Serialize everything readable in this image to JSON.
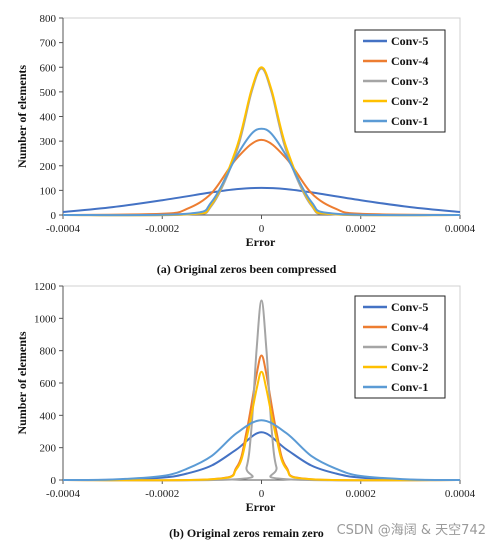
{
  "watermark": "CSDN @海阔 & 天空742",
  "chart_data": [
    {
      "type": "line",
      "caption": "(a) Original zeros been compressed",
      "xlabel": "Error",
      "ylabel": "Number of elements",
      "xlim": [
        -0.0004,
        0.0004
      ],
      "ylim": [
        0,
        800
      ],
      "xticks": [
        -0.0004,
        -0.0002,
        0,
        0.0002,
        0.0004
      ],
      "xtick_labels": [
        "-0.0004",
        "-0.0002",
        "0",
        "0.0002",
        "0.0004"
      ],
      "yticks": [
        0,
        100,
        200,
        300,
        400,
        500,
        600,
        700,
        800
      ],
      "ytick_labels": [
        "0",
        "100",
        "200",
        "300",
        "400",
        "500",
        "600",
        "700",
        "800"
      ],
      "grid": false,
      "legend_position": "top-right",
      "series": [
        {
          "name": "Conv-5",
          "color": "#4472c4",
          "x": [
            -0.0004,
            -0.0003,
            -0.0002,
            -0.0001,
            -5e-05,
            0,
            5e-05,
            0.0001,
            0.0002,
            0.0003,
            0.0004
          ],
          "y": [
            12,
            32,
            60,
            92,
            105,
            110,
            105,
            92,
            60,
            32,
            12
          ]
        },
        {
          "name": "Conv-4",
          "color": "#ed7d31",
          "x": [
            -0.0004,
            -0.0002,
            -0.00015,
            -0.0001,
            -5e-05,
            0,
            5e-05,
            0.0001,
            0.00015,
            0.0002,
            0.0004
          ],
          "y": [
            0,
            5,
            25,
            90,
            230,
            305,
            230,
            90,
            25,
            5,
            0
          ]
        },
        {
          "name": "Conv-3",
          "color": "#a5a5a5",
          "x": [
            -0.0004,
            -0.00015,
            -0.0001,
            -5e-05,
            -2e-05,
            0,
            2e-05,
            5e-05,
            0.0001,
            0.00015,
            0.0004
          ],
          "y": [
            0,
            2,
            40,
            260,
            500,
            595,
            500,
            260,
            40,
            2,
            0
          ]
        },
        {
          "name": "Conv-2",
          "color": "#ffc000",
          "x": [
            -0.0004,
            -0.00015,
            -0.0001,
            -5e-05,
            -2e-05,
            0,
            2e-05,
            5e-05,
            0.0001,
            0.00015,
            0.0004
          ],
          "y": [
            0,
            3,
            45,
            275,
            510,
            600,
            510,
            275,
            45,
            3,
            0
          ]
        },
        {
          "name": "Conv-1",
          "color": "#5b9bd5",
          "x": [
            -0.0004,
            -0.00015,
            -0.0001,
            -5e-05,
            -2e-05,
            0,
            2e-05,
            5e-05,
            0.0001,
            0.00015,
            0.0004
          ],
          "y": [
            0,
            5,
            55,
            240,
            330,
            350,
            330,
            240,
            55,
            5,
            0
          ]
        }
      ]
    },
    {
      "type": "line",
      "caption": "(b) Original zeros remain zero",
      "xlabel": "Error",
      "ylabel": "Number of elements",
      "xlim": [
        -0.0004,
        0.0004
      ],
      "ylim": [
        0,
        1200
      ],
      "xticks": [
        -0.0004,
        -0.0002,
        0,
        0.0002,
        0.0004
      ],
      "xtick_labels": [
        "-0.0004",
        "-0.0002",
        "0",
        "0.0002",
        "0.0004"
      ],
      "yticks": [
        0,
        200,
        400,
        600,
        800,
        1000,
        1200
      ],
      "ytick_labels": [
        "0",
        "200",
        "400",
        "600",
        "800",
        "1000",
        "1200"
      ],
      "grid": false,
      "legend_position": "top-right",
      "series": [
        {
          "name": "Conv-5",
          "color": "#4472c4",
          "x": [
            -0.0004,
            -0.0003,
            -0.0002,
            -0.00015,
            -0.0001,
            -5e-05,
            0,
            5e-05,
            0.0001,
            0.00015,
            0.0002,
            0.0003,
            0.0004
          ],
          "y": [
            0,
            2,
            15,
            40,
            90,
            190,
            295,
            190,
            90,
            40,
            15,
            2,
            0
          ]
        },
        {
          "name": "Conv-4",
          "color": "#ed7d31",
          "x": [
            -0.0004,
            -0.0001,
            -5e-05,
            -3e-05,
            -1e-05,
            0,
            1e-05,
            3e-05,
            5e-05,
            0.0001,
            0.0004
          ],
          "y": [
            0,
            5,
            80,
            300,
            650,
            770,
            650,
            300,
            80,
            5,
            0
          ]
        },
        {
          "name": "Conv-3",
          "color": "#a5a5a5",
          "x": [
            -0.0004,
            -5e-05,
            -3e-05,
            -2e-05,
            -1e-05,
            0,
            1e-05,
            2e-05,
            3e-05,
            5e-05,
            0.0004
          ],
          "y": [
            0,
            5,
            80,
            330,
            800,
            1110,
            800,
            330,
            80,
            5,
            0
          ]
        },
        {
          "name": "Conv-2",
          "color": "#ffc000",
          "x": [
            -0.0004,
            -0.0001,
            -5e-05,
            -3e-05,
            -1e-05,
            0,
            1e-05,
            3e-05,
            5e-05,
            0.0001,
            0.0004
          ],
          "y": [
            0,
            5,
            70,
            260,
            560,
            670,
            560,
            260,
            70,
            5,
            0
          ]
        },
        {
          "name": "Conv-1",
          "color": "#5b9bd5",
          "x": [
            -0.0004,
            -0.0003,
            -0.0002,
            -0.00015,
            -0.0001,
            -5e-05,
            0,
            5e-05,
            0.0001,
            0.00015,
            0.0002,
            0.0003,
            0.0004
          ],
          "y": [
            0,
            3,
            25,
            70,
            150,
            290,
            370,
            290,
            150,
            70,
            25,
            3,
            0
          ]
        }
      ]
    }
  ]
}
